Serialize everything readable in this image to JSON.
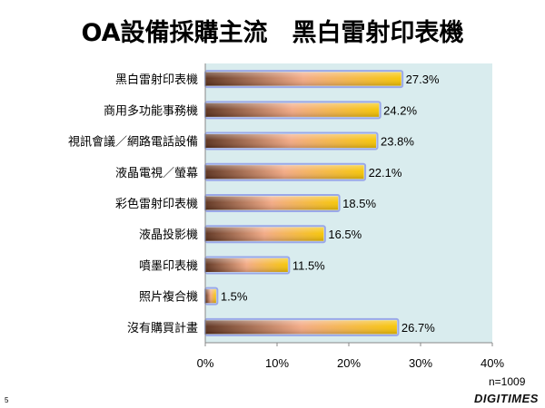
{
  "slide": {
    "title": "OA設備採購主流　黑白雷射印表機",
    "sample_size": "n=1009",
    "page_number": "5",
    "brand": "DIGITIMES"
  },
  "colors": {
    "plot_background": "#d9ecee",
    "bar_dark": "#5a2e1a",
    "bar_mid": "#f3a882",
    "bar_end": "#f6c400",
    "bar_outline": "#9aa8e8"
  },
  "chart_data": {
    "type": "bar",
    "orientation": "horizontal",
    "title": "OA設備採購主流　黑白雷射印表機",
    "xlabel": "",
    "ylabel": "",
    "categories": [
      "黑白雷射印表機",
      "商用多功能事務機",
      "視訊會議／網路電話設備",
      "液晶電視／螢幕",
      "彩色雷射印表機",
      "液晶投影機",
      "噴墨印表機",
      "照片複合機",
      "沒有購買計畫"
    ],
    "values": [
      27.3,
      24.2,
      23.8,
      22.1,
      18.5,
      16.5,
      11.5,
      1.5,
      26.7
    ],
    "value_labels": [
      "27.3%",
      "24.2%",
      "23.8%",
      "22.1%",
      "18.5%",
      "16.5%",
      "11.5%",
      "1.5%",
      "26.7%"
    ],
    "xlim": [
      0,
      40
    ],
    "x_ticks": [
      0,
      10,
      20,
      30,
      40
    ],
    "x_tick_labels": [
      "0%",
      "10%",
      "20%",
      "30%",
      "40%"
    ],
    "grid": false,
    "legend": "none"
  }
}
